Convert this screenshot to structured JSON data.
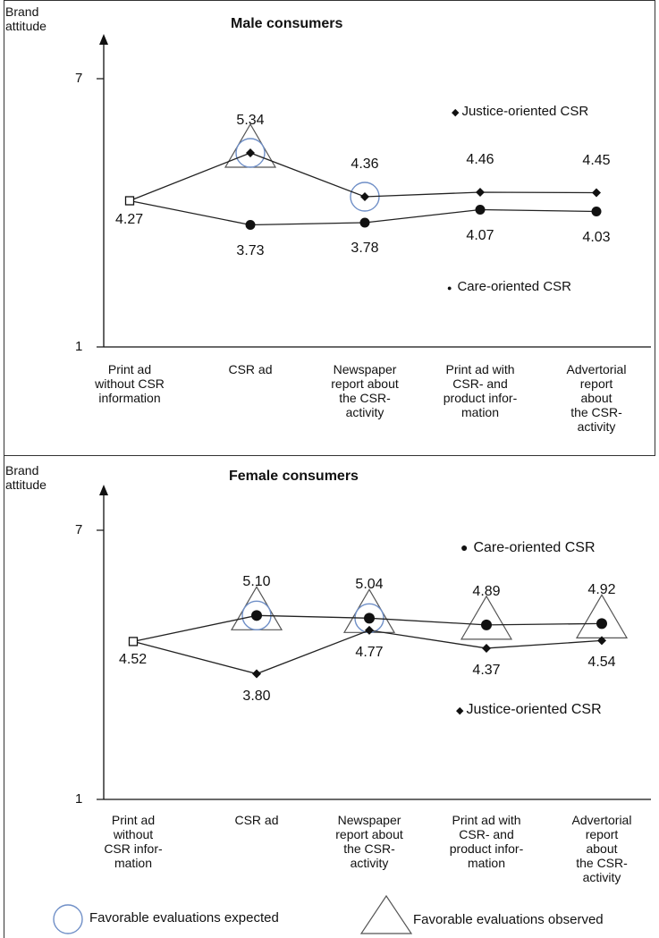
{
  "chart_data": [
    {
      "type": "line",
      "title": "Male consumers",
      "ylabel": "Brand attitude",
      "ylim": [
        1,
        7
      ],
      "yticks": [
        7,
        1
      ],
      "categories": [
        "Print ad\nwithout CSR\ninformation",
        "CSR ad",
        "Newspaper\nreport about\nthe CSR-\nactivity",
        "Print ad with\nCSR- and\nproduct infor-\nmation",
        "Advertorial\nreport about\nthe CSR-\nactivity"
      ],
      "baseline_label": "4.27",
      "series": [
        {
          "name": "Justice-oriented CSR",
          "marker": "diamond",
          "values": [
            4.27,
            5.34,
            4.36,
            4.46,
            4.45
          ],
          "labels": [
            "",
            "5.34",
            "4.36",
            "4.46",
            "4.45"
          ]
        },
        {
          "name": "Care-oriented CSR",
          "marker": "circle",
          "values": [
            4.27,
            3.73,
            3.78,
            4.07,
            4.03
          ],
          "labels": [
            "",
            "3.73",
            "3.78",
            "4.07",
            "4.03"
          ]
        }
      ],
      "expected": [
        1,
        2
      ],
      "observed": [
        1
      ]
    },
    {
      "type": "line",
      "title": "Female consumers",
      "ylabel": "Brand attitude",
      "ylim": [
        1,
        7
      ],
      "yticks": [
        7,
        1
      ],
      "categories": [
        "Print ad\nwithout\nCSR infor-\nmation",
        "CSR ad",
        "Newspaper\nreport about\nthe CSR-\nactivity",
        "Print ad with\nCSR- and\nproduct infor-\nmation",
        "Advertorial\nreport about\nthe CSR-\nactivity"
      ],
      "baseline_label": "4.52",
      "series": [
        {
          "name": "Care-oriented CSR",
          "marker": "circle-large",
          "values": [
            4.52,
            5.1,
            5.04,
            4.89,
            4.92
          ],
          "labels": [
            "",
            "5.10",
            "5.04",
            "4.89",
            "4.92"
          ]
        },
        {
          "name": "Justice-oriented CSR",
          "marker": "diamond",
          "values": [
            4.52,
            3.8,
            4.77,
            4.37,
            4.54
          ],
          "labels": [
            "",
            "3.80",
            "4.77",
            "4.37",
            "4.54"
          ]
        }
      ],
      "expected": [
        1,
        2
      ],
      "observed": [
        1,
        2,
        3,
        4
      ]
    }
  ],
  "legend": {
    "expected_label": "Favorable evaluations expected",
    "observed_label": "Favorable evaluations observed"
  },
  "colors": {
    "line": "#222222",
    "expected_circle": "#6f8fc7"
  }
}
